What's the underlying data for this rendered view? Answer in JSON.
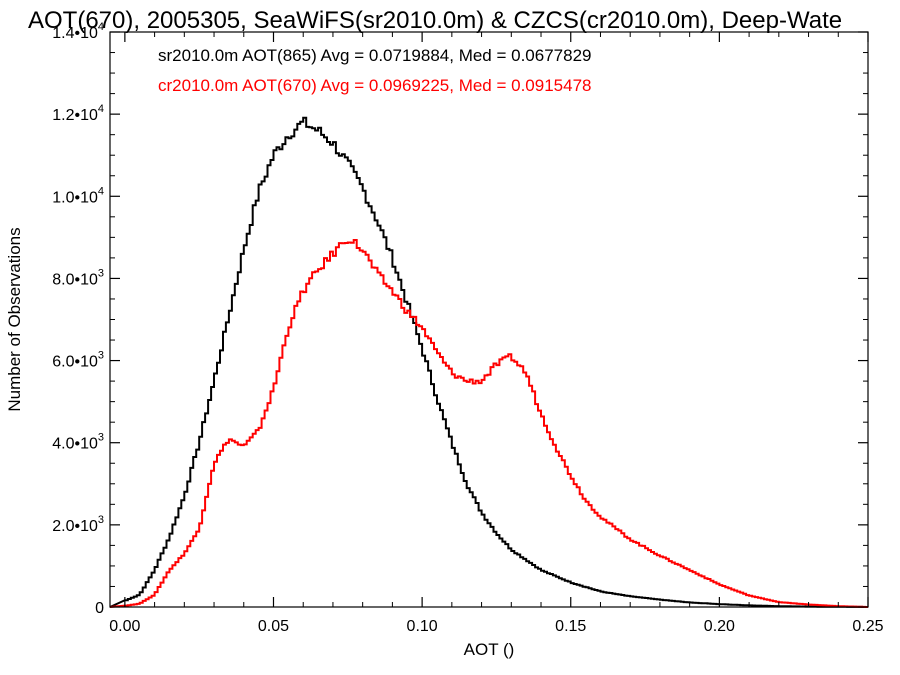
{
  "chart_data": {
    "type": "line",
    "title": "AOT(670), 2005305, SeaWiFS(sr2010.0m) & CZCS(cr2010.0m), Deep-Wate",
    "xlabel": "AOT ()",
    "ylabel": "Number of Observations",
    "xlim": [
      -0.005,
      0.25
    ],
    "ylim": [
      0,
      14000
    ],
    "x_ticks": [
      {
        "value": 0.0,
        "label": "0.00"
      },
      {
        "value": 0.05,
        "label": "0.05"
      },
      {
        "value": 0.1,
        "label": "0.10"
      },
      {
        "value": 0.15,
        "label": "0.15"
      },
      {
        "value": 0.2,
        "label": "0.20"
      },
      {
        "value": 0.25,
        "label": "0.25"
      }
    ],
    "y_ticks": [
      {
        "value": 0,
        "label": "0",
        "exp": ""
      },
      {
        "value": 2000,
        "label": "2.0•10",
        "exp": "3"
      },
      {
        "value": 4000,
        "label": "4.0•10",
        "exp": "3"
      },
      {
        "value": 6000,
        "label": "6.0•10",
        "exp": "3"
      },
      {
        "value": 8000,
        "label": "8.0•10",
        "exp": "3"
      },
      {
        "value": 10000,
        "label": "1.0•10",
        "exp": "4"
      },
      {
        "value": 12000,
        "label": "1.2•10",
        "exp": "4"
      },
      {
        "value": 14000,
        "label": "1.4•10",
        "exp": "4"
      }
    ],
    "grid": false,
    "legend": {
      "placement": "top-left"
    },
    "series": [
      {
        "name": "sr2010.0m AOT(865) Avg = 0.0719884, Med = 0.0677829",
        "color": "#000000",
        "x": [
          0.0,
          0.005,
          0.01,
          0.015,
          0.02,
          0.025,
          0.03,
          0.035,
          0.04,
          0.045,
          0.05,
          0.055,
          0.06,
          0.065,
          0.07,
          0.075,
          0.08,
          0.085,
          0.09,
          0.095,
          0.1,
          0.105,
          0.11,
          0.115,
          0.12,
          0.125,
          0.13,
          0.14,
          0.15,
          0.16,
          0.17,
          0.18,
          0.19,
          0.2,
          0.21,
          0.22,
          0.23,
          0.25
        ],
        "y": [
          150,
          300,
          900,
          1700,
          2700,
          4000,
          5500,
          7100,
          8700,
          10100,
          11000,
          11500,
          11800,
          11600,
          11300,
          10800,
          10200,
          9400,
          8500,
          7400,
          6300,
          5100,
          4000,
          3000,
          2300,
          1800,
          1400,
          900,
          600,
          380,
          260,
          180,
          110,
          70,
          40,
          20,
          10,
          0
        ]
      },
      {
        "name": "cr2010.0m AOT(670) Avg = 0.0969225, Med = 0.0915478",
        "color": "#ff0000",
        "x": [
          0.0,
          0.005,
          0.01,
          0.015,
          0.02,
          0.025,
          0.03,
          0.035,
          0.04,
          0.045,
          0.05,
          0.055,
          0.06,
          0.065,
          0.07,
          0.075,
          0.08,
          0.085,
          0.09,
          0.095,
          0.1,
          0.105,
          0.11,
          0.115,
          0.12,
          0.125,
          0.13,
          0.135,
          0.14,
          0.145,
          0.15,
          0.155,
          0.16,
          0.17,
          0.18,
          0.19,
          0.2,
          0.21,
          0.22,
          0.23,
          0.24,
          0.25
        ],
        "y": [
          30,
          80,
          300,
          900,
          1300,
          1900,
          3500,
          4100,
          3900,
          4300,
          5300,
          6800,
          7700,
          8200,
          8600,
          9000,
          8700,
          8100,
          7700,
          7200,
          6800,
          6200,
          5700,
          5500,
          5500,
          5900,
          6100,
          5700,
          4700,
          3900,
          3200,
          2600,
          2200,
          1650,
          1250,
          900,
          550,
          280,
          120,
          60,
          20,
          0
        ]
      }
    ]
  }
}
